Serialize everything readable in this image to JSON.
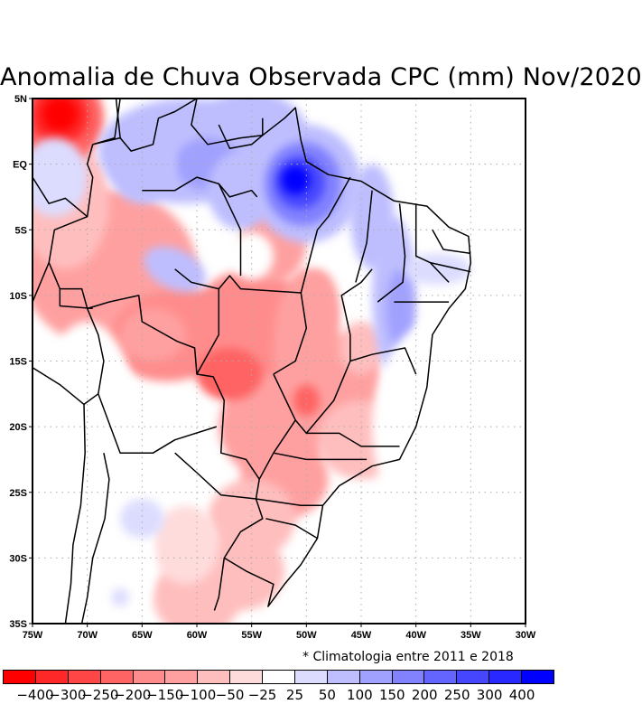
{
  "title": "Anomalia de Chuva Observada CPC (mm) Nov/2020",
  "footnote": "* Climatologia entre 2011 e 2018",
  "chart_data": {
    "type": "heatmap",
    "title": "Anomalia de Chuva Observada CPC (mm) Nov/2020",
    "variable": "Precipitation anomaly (mm)",
    "period": "Nov/2020",
    "source": "CPC",
    "climatology_note": "* Climatologia entre 2011 e 2018",
    "region": "Brazil / South America",
    "grid": true,
    "x_axis": {
      "ticks": [
        "75W",
        "70W",
        "65W",
        "60W",
        "55W",
        "50W",
        "45W",
        "40W",
        "35W",
        "30W"
      ],
      "range_deg_lon": [
        -75,
        -30
      ]
    },
    "y_axis": {
      "ticks": [
        "5N",
        "EQ",
        "5S",
        "10S",
        "15S",
        "20S",
        "25S",
        "30S",
        "35S"
      ],
      "range_deg_lat": [
        -35,
        5
      ]
    },
    "colorbar": {
      "placement": "bottom",
      "labels": [
        "-400",
        "-300",
        "-250",
        "-200",
        "-150",
        "-100",
        "-50",
        "-25",
        "25",
        "50",
        "100",
        "150",
        "200",
        "250",
        "300",
        "400"
      ],
      "colors": [
        "#ff0000",
        "#ff2828",
        "#ff4646",
        "#ff6464",
        "#ff8c8c",
        "#ffa0a0",
        "#ffbebe",
        "#ffdcdc",
        "#ffffff",
        "#dcdcff",
        "#bebeff",
        "#a0a0ff",
        "#8282ff",
        "#6464ff",
        "#4646ff",
        "#2828ff",
        "#0000ff"
      ]
    },
    "features": [
      {
        "name": "strong-positive-anomaly",
        "description": "Maximum positive anomaly near Marajó/Pará coast",
        "lon": -50.5,
        "lat": -1.5,
        "level": "300 to 400+"
      },
      {
        "name": "strong-negative-anomaly",
        "description": "Maximum negative anomaly in southern Colombia/Venezuela",
        "lon": -72.5,
        "lat": 3.5,
        "level": "-400 to -300"
      },
      {
        "name": "positive-north",
        "description": "Positive anomalies over northern Amazon, Roraima, Amapá, Guianas",
        "lon": -60,
        "lat": 0,
        "level": "25 to 150"
      },
      {
        "name": "positive-northeast",
        "description": "Positive anomalies in Maranhão/Piauí and Bahia interior",
        "lon": -42,
        "lat": -10,
        "level": "25 to 150"
      },
      {
        "name": "negative-center-west",
        "description": "Negative anomalies over Mato Grosso, Goiás, Rondônia, Bolivia",
        "lon": -55,
        "lat": -13,
        "level": "-200 to -50"
      },
      {
        "name": "negative-southeast",
        "description": "Negative anomalies over Minas Gerais, São Paulo, Paraná",
        "lon": -48,
        "lat": -20,
        "level": "-150 to -25"
      },
      {
        "name": "negative-south",
        "description": "Negative anomalies over Rio Grande do Sul, Uruguay, Argentina",
        "lon": -56,
        "lat": -30,
        "level": "-100 to -25"
      },
      {
        "name": "positive-argentina",
        "description": "Small positive anomaly in northern Argentina",
        "lon": -64,
        "lat": -27,
        "level": "25 to 50"
      }
    ]
  }
}
